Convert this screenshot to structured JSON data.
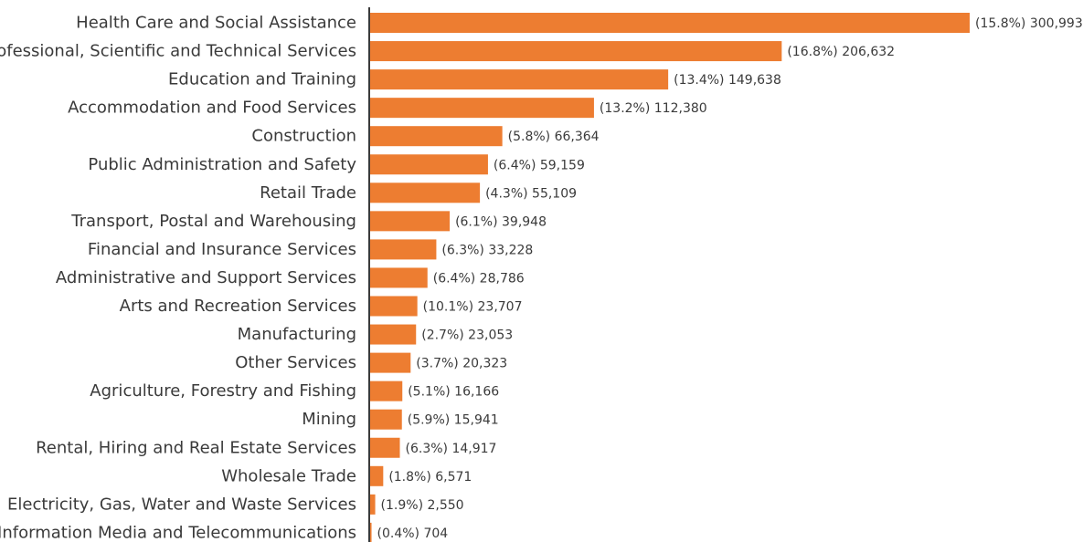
{
  "chart_data": {
    "type": "bar",
    "orientation": "horizontal",
    "categories": [
      "Health Care and Social Assistance",
      "Professional, Scientific and Technical Services",
      "Education and Training",
      "Accommodation and Food Services",
      "Construction",
      "Public Administration and Safety",
      "Retail Trade",
      "Transport, Postal and Warehousing",
      "Financial and Insurance Services",
      "Administrative and Support Services",
      "Arts and Recreation Services",
      "Manufacturing",
      "Other Services",
      "Agriculture, Forestry and Fishing",
      "Mining",
      "Rental, Hiring and Real Estate Services",
      "Wholesale Trade",
      "Electricity, Gas, Water and Waste Services",
      "Information Media and Telecommunications"
    ],
    "values": [
      300993,
      206632,
      149638,
      112380,
      66364,
      59159,
      55109,
      39948,
      33228,
      28786,
      23707,
      23053,
      20323,
      16166,
      15941,
      14917,
      6571,
      2550,
      704
    ],
    "value_labels": [
      "(15.8%) 300,993",
      "(16.8%) 206,632",
      "(13.4%) 149,638",
      "(13.2%) 112,380",
      "(5.8%) 66,364",
      "(6.4%) 59,159",
      "(4.3%) 55,109",
      "(6.1%) 39,948",
      "(6.3%) 33,228",
      "(6.4%) 28,786",
      "(10.1%) 23,707",
      "(2.7%) 23,053",
      "(3.7%) 20,323",
      "(5.1%) 16,166",
      "(5.9%) 15,941",
      "(6.3%) 14,917",
      "(1.8%) 6,571",
      "(1.9%) 2,550",
      "(0.4%) 704"
    ],
    "xlim": [
      0,
      300993
    ],
    "grid": false,
    "bar_color": "#ed7d31",
    "axis_color": "#3a3a3a"
  }
}
